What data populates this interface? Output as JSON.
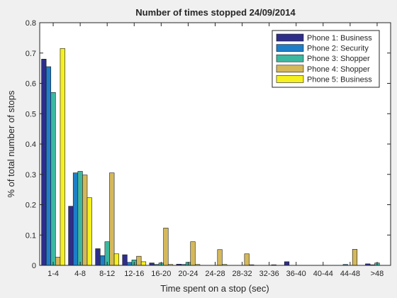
{
  "chart_data": {
    "type": "bar",
    "title": "Number of times stopped 24/09/2014",
    "xlabel": "Time spent on a stop (sec)",
    "ylabel": "% of total number of stops",
    "ylim": [
      0,
      0.8
    ],
    "yticks": [
      "0",
      "0.1",
      "0.2",
      "0.3",
      "0.4",
      "0.5",
      "0.6",
      "0.7",
      "0.8"
    ],
    "grid": false,
    "legend_position": "top-right",
    "categories": [
      "1-4",
      "4-8",
      "8-12",
      "12-16",
      "16-20",
      "20-24",
      "24-28",
      "28-32",
      "32-36",
      "36-40",
      "40-44",
      "44-48",
      ">48"
    ],
    "series": [
      {
        "name": "Phone 1: Business",
        "color": "#2e2e8a",
        "values": [
          0.68,
          0.195,
          0.055,
          0.035,
          0.008,
          0.004,
          0.0,
          0.0,
          0.0,
          0.012,
          0.0,
          0.0,
          0.005
        ]
      },
      {
        "name": "Phone 2: Security",
        "color": "#1e7fc8",
        "values": [
          0.655,
          0.305,
          0.032,
          0.01,
          0.003,
          0.003,
          0.0,
          0.0,
          0.0,
          0.0,
          0.0,
          0.003,
          0.002
        ]
      },
      {
        "name": "Phone 3: Shopper",
        "color": "#3cb8a0",
        "values": [
          0.57,
          0.31,
          0.078,
          0.018,
          0.008,
          0.01,
          0.0,
          0.0,
          0.0,
          0.0,
          0.0,
          0.0,
          0.008
        ]
      },
      {
        "name": "Phone 4: Shopper",
        "color": "#d4b85a",
        "values": [
          0.027,
          0.298,
          0.305,
          0.03,
          0.123,
          0.078,
          0.052,
          0.038,
          0.002,
          0.0,
          0.0,
          0.053,
          0.0
        ]
      },
      {
        "name": "Phone 5: Business",
        "color": "#f5f01e",
        "values": [
          0.715,
          0.223,
          0.038,
          0.012,
          0.003,
          0.003,
          0.003,
          0.002,
          0.0,
          0.0,
          0.0,
          0.0,
          0.0
        ]
      }
    ]
  }
}
